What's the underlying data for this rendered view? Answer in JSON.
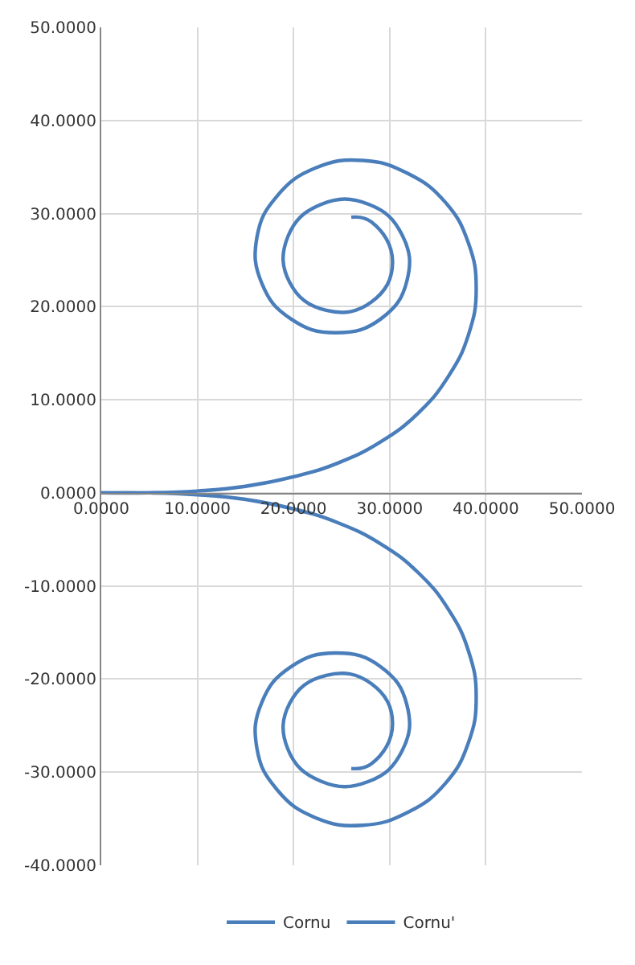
{
  "chart_data": {
    "type": "line",
    "xlim": [
      0,
      50
    ],
    "xticks": [
      {
        "value": 0,
        "label": "0.0000"
      },
      {
        "value": 10,
        "label": "10.0000"
      },
      {
        "value": 20,
        "label": "20.0000"
      },
      {
        "value": 30,
        "label": "30.0000"
      },
      {
        "value": 40,
        "label": "40.0000"
      },
      {
        "value": 50,
        "label": "50.0000"
      }
    ],
    "ylim": [
      -40,
      50
    ],
    "yticks": [
      {
        "value": -40,
        "label": "-40.0000"
      },
      {
        "value": -30,
        "label": "-30.0000"
      },
      {
        "value": -20,
        "label": "-20.0000"
      },
      {
        "value": -10,
        "label": "-10.0000"
      },
      {
        "value": 0,
        "label": "0.0000"
      },
      {
        "value": 10,
        "label": "10.0000"
      },
      {
        "value": 20,
        "label": "20.0000"
      },
      {
        "value": 30,
        "label": "30.0000"
      },
      {
        "value": 40,
        "label": "40.0000"
      },
      {
        "value": 50,
        "label": "50.0000"
      }
    ],
    "grid": true,
    "legend": "bottom",
    "marker": "none",
    "line_style": "solid",
    "series": [
      {
        "name": "Cornu",
        "color": "#4a7ebb",
        "x": [
          0,
          5.0,
          10.0,
          15.0,
          19.9,
          24.6,
          29.1,
          33.0,
          36.1,
          38.2,
          39.0,
          38.2,
          35.8,
          31.9,
          27.2,
          22.3,
          18.3,
          16.2,
          16.7,
          19.7,
          24.4,
          29.1,
          31.8,
          31.3,
          27.8,
          22.9,
          19.4,
          19.6,
          23.4,
          28.1,
          30.3,
          28.1,
          26.0
        ],
        "values": [
          0,
          0.0,
          0.2,
          0.7,
          1.7,
          3.2,
          5.5,
          8.6,
          12.5,
          17.0,
          21.9,
          26.8,
          31.2,
          34.3,
          35.7,
          34.9,
          31.9,
          27.5,
          22.5,
          18.7,
          17.2,
          18.7,
          22.8,
          27.7,
          31.0,
          31.0,
          27.5,
          22.6,
          19.6,
          20.5,
          24.8,
          29.1,
          29.6
        ]
      },
      {
        "name": "Cornu'",
        "color": "#4a7ebb",
        "x": [
          0,
          5.0,
          10.0,
          15.0,
          19.9,
          24.6,
          29.1,
          33.0,
          36.1,
          38.2,
          39.0,
          38.2,
          35.8,
          31.9,
          27.2,
          22.3,
          18.3,
          16.2,
          16.7,
          19.7,
          24.4,
          29.1,
          31.8,
          31.3,
          27.8,
          22.9,
          19.4,
          19.6,
          23.4,
          28.1,
          30.3,
          28.1,
          26.0
        ],
        "values": [
          0,
          -0.0,
          -0.2,
          -0.7,
          -1.7,
          -3.2,
          -5.5,
          -8.6,
          -12.5,
          -17.0,
          -21.9,
          -26.8,
          -31.2,
          -34.3,
          -35.7,
          -34.9,
          -31.9,
          -27.5,
          -22.5,
          -18.7,
          -17.2,
          -18.7,
          -22.8,
          -27.7,
          -31.0,
          -31.0,
          -27.5,
          -22.6,
          -19.6,
          -20.5,
          -24.8,
          -29.1,
          -29.6
        ]
      }
    ]
  }
}
